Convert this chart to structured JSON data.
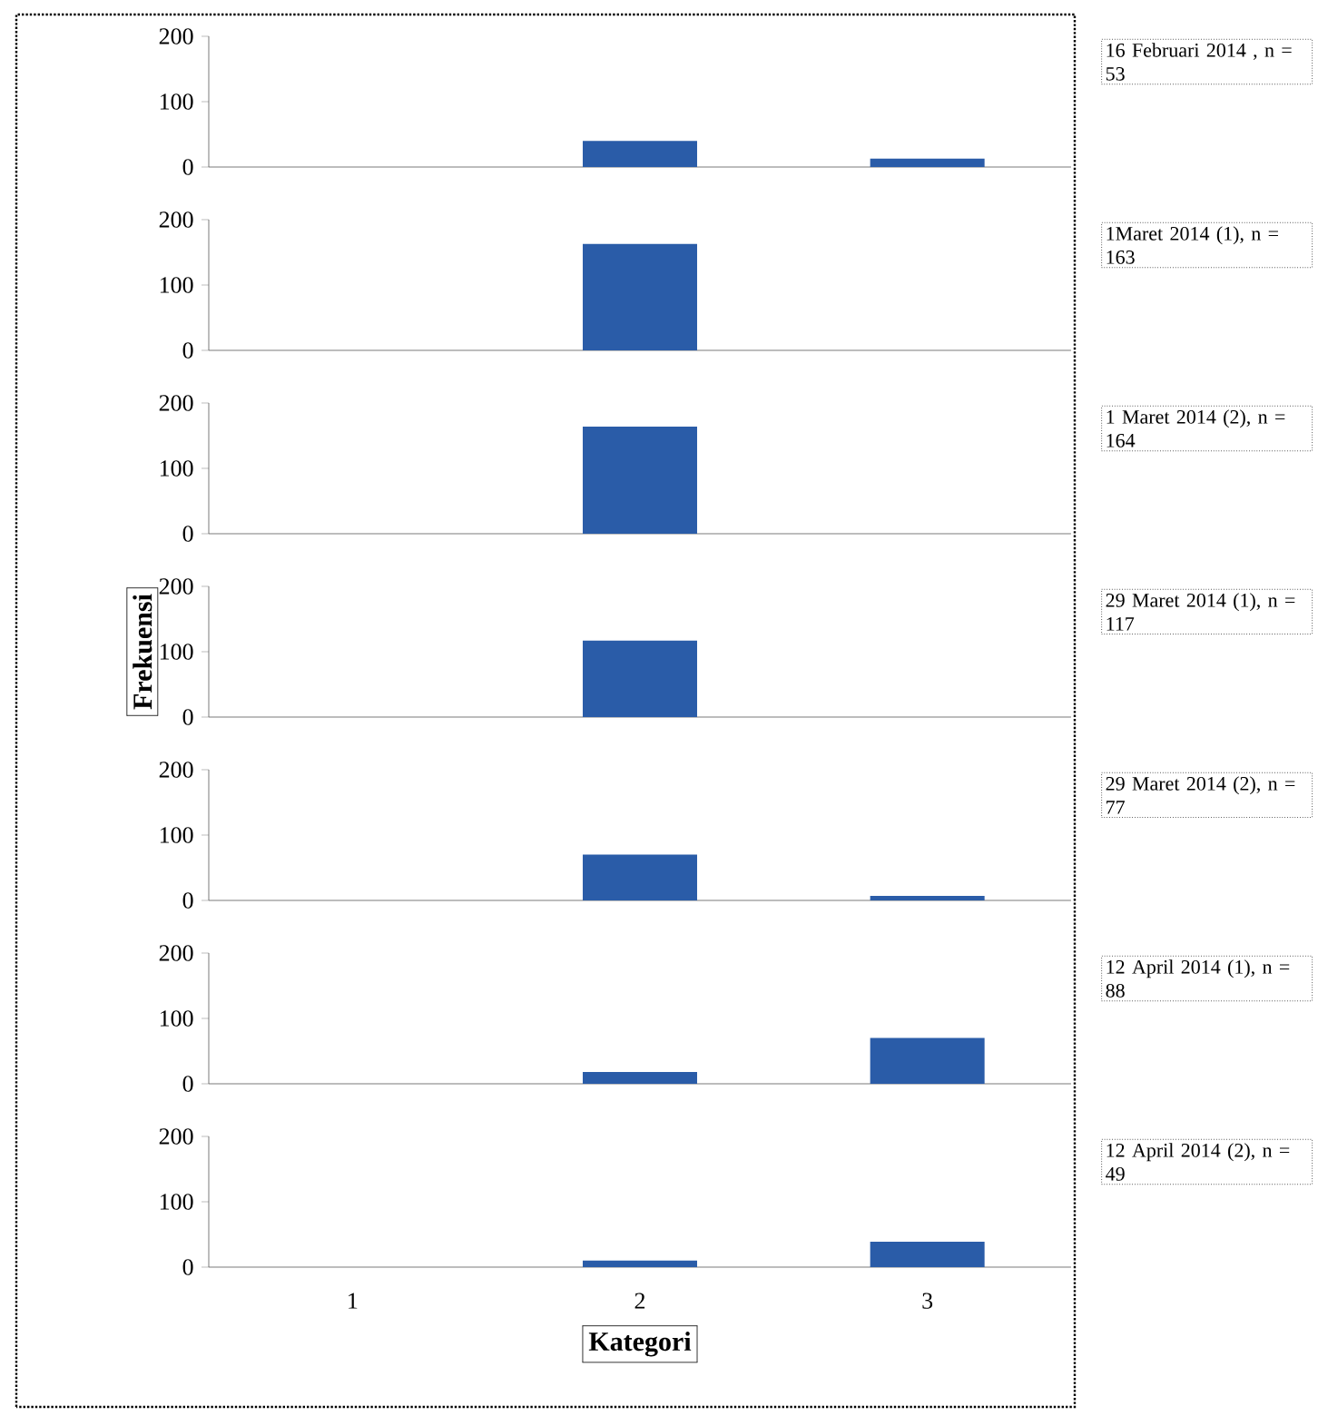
{
  "chart_data": [
    {
      "type": "bar",
      "categories": [
        "1",
        "2",
        "3"
      ],
      "values": [
        0,
        40,
        13
      ],
      "color": "#2a5ca8",
      "ylim": [
        0,
        200
      ],
      "yticks": [
        0,
        100,
        200
      ],
      "tick_labels": "y",
      "annotations": [
        "16 Februari 2014 , n = 53"
      ]
    },
    {
      "type": "bar",
      "categories": [
        "1",
        "2",
        "3"
      ],
      "values": [
        0,
        163,
        0
      ],
      "color": "#2a5ca8",
      "ylim": [
        0,
        200
      ],
      "yticks": [
        0,
        100,
        200
      ],
      "tick_labels": "y",
      "annotations": [
        "1Maret 2014 (1), n = 163"
      ]
    },
    {
      "type": "bar",
      "categories": [
        "1",
        "2",
        "3"
      ],
      "values": [
        0,
        164,
        0
      ],
      "color": "#2a5ca8",
      "ylim": [
        0,
        200
      ],
      "yticks": [
        0,
        100,
        200
      ],
      "tick_labels": "y",
      "annotations": [
        "1 Maret 2014 (2), n = 164"
      ]
    },
    {
      "type": "bar",
      "categories": [
        "1",
        "2",
        "3"
      ],
      "values": [
        0,
        117,
        0
      ],
      "color": "#2a5ca8",
      "ylim": [
        0,
        200
      ],
      "yticks": [
        0,
        100,
        200
      ],
      "tick_labels": "y",
      "ylabel": "Frekuensi",
      "annotations": [
        "29 Maret 2014 (1), n = 117"
      ]
    },
    {
      "type": "bar",
      "categories": [
        "1",
        "2",
        "3"
      ],
      "values": [
        0,
        70,
        7
      ],
      "color": "#2a5ca8",
      "ylim": [
        0,
        200
      ],
      "yticks": [
        0,
        100,
        200
      ],
      "tick_labels": "y",
      "annotations": [
        "29 Maret 2014 (2), n = 77"
      ]
    },
    {
      "type": "bar",
      "categories": [
        "1",
        "2",
        "3"
      ],
      "values": [
        0,
        18,
        70
      ],
      "color": "#2a5ca8",
      "ylim": [
        0,
        200
      ],
      "yticks": [
        0,
        100,
        200
      ],
      "tick_labels": "y",
      "annotations": [
        "12 April 2014 (1), n = 88"
      ]
    },
    {
      "type": "bar",
      "categories": [
        "1",
        "2",
        "3"
      ],
      "values": [
        0,
        10,
        39
      ],
      "color": "#2a5ca8",
      "ylim": [
        0,
        200
      ],
      "yticks": [
        0,
        100,
        200
      ],
      "xlabel": "Kategori",
      "annotations": [
        "12 April 2014 (2), n = 49"
      ]
    }
  ]
}
